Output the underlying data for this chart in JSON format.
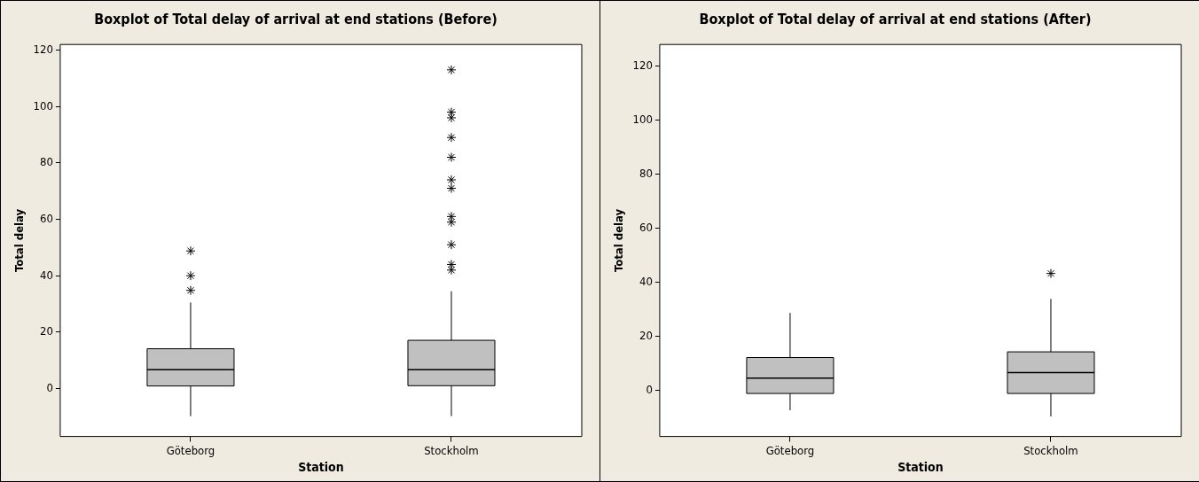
{
  "chart_data": [
    {
      "type": "box",
      "title": "Boxplot of Total delay of arrival at end stations (Before)",
      "xlabel": "Station",
      "ylabel": "Total delay",
      "categories": [
        "Göteborg",
        "Stockholm"
      ],
      "color": "#c0c0c0",
      "marker": "star",
      "grid": false,
      "legend": false,
      "ylim": [
        -17,
        122
      ],
      "yticks": [
        0,
        20,
        40,
        60,
        80,
        100,
        120
      ],
      "boxes": [
        {
          "low": -9.8,
          "q1": 0.9,
          "median": 6.7,
          "q3": 14.1,
          "high": 30.5,
          "outliers": [
            48.8,
            40,
            34.8
          ]
        },
        {
          "low": -9.8,
          "q1": 1,
          "median": 6.7,
          "q3": 17.1,
          "high": 34.5,
          "outliers": [
            113,
            98,
            96,
            89,
            82,
            74,
            71,
            61,
            59,
            51,
            44,
            42
          ]
        }
      ]
    },
    {
      "type": "box",
      "title": "Boxplot of Total delay of arrival at end stations (After)",
      "xlabel": "Station",
      "ylabel": "Total delay",
      "categories": [
        "Göteborg",
        "Stockholm"
      ],
      "color": "#c0c0c0",
      "marker": "star",
      "grid": false,
      "legend": false,
      "ylim": [
        -17,
        128
      ],
      "yticks": [
        0,
        20,
        40,
        60,
        80,
        100,
        120
      ],
      "boxes": [
        {
          "low": -7.3,
          "q1": -1.1,
          "median": 4.6,
          "q3": 12.2,
          "high": 28.7
        },
        {
          "low": -9.6,
          "q1": -1.1,
          "median": 6.6,
          "q3": 14.3,
          "high": 33.9,
          "outliers": [
            43.3
          ]
        }
      ]
    }
  ]
}
